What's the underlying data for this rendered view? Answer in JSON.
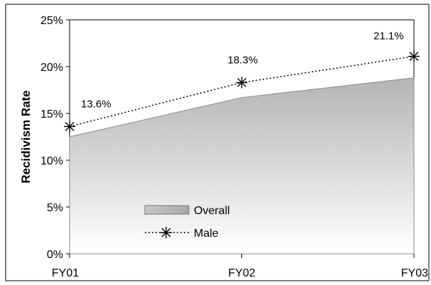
{
  "chart_data": {
    "type": "area",
    "categories": [
      "FY01",
      "FY02",
      "FY03"
    ],
    "series": [
      {
        "name": "Overall",
        "type": "area",
        "values": [
          12.5,
          16.7,
          18.8
        ],
        "color": "#b4b4b4"
      },
      {
        "name": "Male",
        "type": "line",
        "style": "dotted",
        "marker": "asterisk",
        "values": [
          13.6,
          18.3,
          21.1
        ],
        "color": "#000000"
      }
    ],
    "data_labels": [
      "13.6%",
      "18.3%",
      "21.1%"
    ],
    "y_ticks": [
      "0%",
      "5%",
      "10%",
      "15%",
      "20%",
      "25%"
    ],
    "ylim": [
      0,
      25
    ],
    "ylabel": "Recidivism Rate",
    "xlabel": "",
    "title": "",
    "grid": false,
    "legend_position": "bottom-center"
  }
}
